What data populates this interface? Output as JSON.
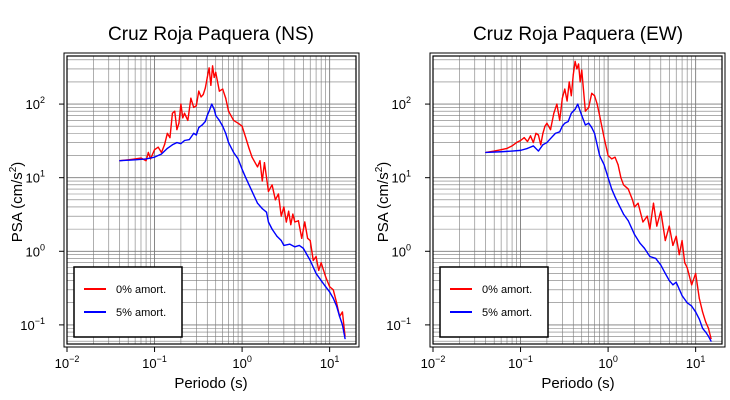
{
  "chart_data": [
    {
      "type": "line",
      "title": "Cruz Roja Paquera (NS)",
      "xlabel": "Periodo (s)",
      "ylabel_main": "PSA (cm/s",
      "ylabel_sup": "2",
      "ylabel_close": ")",
      "xscale": "log",
      "yscale": "log",
      "xlim": [
        0.01,
        20
      ],
      "ylim": [
        0.055,
        450
      ],
      "grid": true,
      "legend_position": "bottom-left",
      "x_ticks": [
        {
          "base": "10",
          "exp": "−2",
          "value": 0.01
        },
        {
          "base": "10",
          "exp": "−1",
          "value": 0.1
        },
        {
          "base": "10",
          "exp": "0",
          "value": 1
        },
        {
          "base": "10",
          "exp": "1",
          "value": 10
        }
      ],
      "y_ticks": [
        {
          "label": "10",
          "exp": "−1",
          "value": 0.1
        },
        {
          "label": "10",
          "exp": "0",
          "value": 1
        },
        {
          "label": "10",
          "exp": "1",
          "value": 10
        },
        {
          "label": "10",
          "exp": "2",
          "value": 100
        }
      ],
      "series": [
        {
          "name": "0% amort.",
          "color": "#ff0000",
          "x": [
            0.04,
            0.05,
            0.06,
            0.07,
            0.08,
            0.085,
            0.09,
            0.1,
            0.11,
            0.12,
            0.13,
            0.14,
            0.15,
            0.16,
            0.17,
            0.18,
            0.19,
            0.2,
            0.21,
            0.22,
            0.24,
            0.26,
            0.28,
            0.3,
            0.32,
            0.34,
            0.36,
            0.38,
            0.4,
            0.42,
            0.44,
            0.46,
            0.48,
            0.5,
            0.55,
            0.6,
            0.65,
            0.7,
            0.8,
            0.9,
            1.0,
            1.1,
            1.2,
            1.3,
            1.5,
            1.6,
            1.7,
            1.8,
            2.0,
            2.2,
            2.4,
            2.6,
            2.8,
            3.0,
            3.2,
            3.4,
            3.6,
            3.8,
            4.0,
            4.4,
            4.8,
            5.2,
            5.6,
            6.0,
            6.5,
            7.0,
            7.5,
            8.0,
            9.0,
            10.0,
            11.0,
            12.0,
            13.0,
            14.0,
            15.0
          ],
          "y": [
            17,
            17.5,
            18,
            18.5,
            17,
            22,
            18,
            24,
            26,
            22,
            28,
            40,
            35,
            75,
            80,
            45,
            55,
            100,
            65,
            75,
            60,
            120,
            90,
            95,
            150,
            125,
            135,
            165,
            230,
            310,
            180,
            330,
            230,
            270,
            150,
            160,
            120,
            80,
            60,
            55,
            50,
            35,
            25,
            19,
            14,
            17,
            9,
            16,
            6.5,
            8,
            5,
            6,
            3,
            4,
            2.5,
            3.5,
            2.3,
            3.2,
            2.5,
            2.6,
            1.5,
            2.5,
            1.5,
            1.4,
            0.75,
            0.85,
            0.55,
            0.7,
            0.45,
            0.33,
            0.3,
            0.2,
            0.13,
            0.15,
            0.07
          ]
        },
        {
          "name": "5% amort.",
          "color": "#0000ff",
          "x": [
            0.04,
            0.06,
            0.08,
            0.1,
            0.12,
            0.14,
            0.16,
            0.18,
            0.2,
            0.22,
            0.25,
            0.28,
            0.3,
            0.32,
            0.35,
            0.38,
            0.4,
            0.42,
            0.45,
            0.48,
            0.5,
            0.55,
            0.6,
            0.65,
            0.7,
            0.8,
            0.9,
            1.0,
            1.1,
            1.2,
            1.3,
            1.5,
            1.7,
            1.9,
            2.0,
            2.2,
            2.5,
            2.8,
            3.0,
            3.5,
            4.0,
            4.5,
            5.0,
            5.5,
            6.0,
            7.0,
            8.0,
            9.0,
            10.0,
            11.0,
            12.0,
            13.0,
            14.0,
            15.0
          ],
          "y": [
            17,
            17.5,
            18,
            19,
            21,
            25,
            28,
            30,
            29,
            32,
            33,
            40,
            38,
            48,
            52,
            58,
            70,
            80,
            100,
            85,
            70,
            60,
            50,
            40,
            30,
            22,
            18,
            13,
            10,
            8,
            6.5,
            4.5,
            3.8,
            3.4,
            2.5,
            2,
            1.6,
            1.4,
            1.2,
            1.25,
            1.15,
            1.2,
            1.1,
            0.9,
            0.75,
            0.5,
            0.4,
            0.33,
            0.28,
            0.23,
            0.18,
            0.13,
            0.1,
            0.065
          ]
        }
      ]
    },
    {
      "type": "line",
      "title": "Cruz Roja Paquera (EW)",
      "xlabel": "Periodo (s)",
      "ylabel_main": "PSA (cm/s",
      "ylabel_sup": "2",
      "ylabel_close": ")",
      "xscale": "log",
      "yscale": "log",
      "xlim": [
        0.01,
        20
      ],
      "ylim": [
        0.055,
        450
      ],
      "grid": true,
      "legend_position": "bottom-left",
      "x_ticks": [
        {
          "base": "10",
          "exp": "−2",
          "value": 0.01
        },
        {
          "base": "10",
          "exp": "−1",
          "value": 0.1
        },
        {
          "base": "10",
          "exp": "0",
          "value": 1
        },
        {
          "base": "10",
          "exp": "1",
          "value": 10
        }
      ],
      "y_ticks": [
        {
          "label": "10",
          "exp": "−1",
          "value": 0.1
        },
        {
          "label": "10",
          "exp": "0",
          "value": 1
        },
        {
          "label": "10",
          "exp": "1",
          "value": 10
        },
        {
          "label": "10",
          "exp": "2",
          "value": 100
        }
      ],
      "series": [
        {
          "name": "0% amort.",
          "color": "#ff0000",
          "x": [
            0.04,
            0.05,
            0.06,
            0.07,
            0.08,
            0.09,
            0.1,
            0.11,
            0.12,
            0.13,
            0.14,
            0.15,
            0.16,
            0.17,
            0.18,
            0.19,
            0.2,
            0.22,
            0.24,
            0.26,
            0.28,
            0.3,
            0.32,
            0.34,
            0.36,
            0.38,
            0.4,
            0.42,
            0.44,
            0.46,
            0.48,
            0.5,
            0.55,
            0.6,
            0.65,
            0.7,
            0.75,
            0.8,
            0.9,
            1.0,
            1.1,
            1.2,
            1.3,
            1.4,
            1.5,
            1.7,
            1.9,
            2.0,
            2.2,
            2.5,
            2.8,
            3.0,
            3.3,
            3.6,
            4.0,
            4.5,
            5.0,
            5.5,
            6.0,
            6.5,
            7.0,
            7.5,
            8.0,
            9.0,
            10.0,
            11.0,
            12.0,
            13.0,
            14.0,
            15.0
          ],
          "y": [
            22,
            23,
            24,
            25,
            27,
            30,
            32,
            35,
            31,
            37,
            30,
            40,
            38,
            28,
            40,
            50,
            55,
            45,
            75,
            100,
            60,
            120,
            160,
            110,
            200,
            130,
            250,
            380,
            300,
            350,
            200,
            290,
            80,
            90,
            140,
            130,
            100,
            70,
            35,
            20,
            18,
            19,
            15,
            10,
            8,
            7,
            5,
            4,
            4.5,
            2.5,
            3,
            2,
            4.5,
            2.2,
            3.5,
            1.4,
            2.2,
            1.2,
            1.6,
            0.9,
            1.4,
            0.7,
            0.6,
            0.35,
            0.5,
            0.23,
            0.15,
            0.11,
            0.09,
            0.065
          ]
        },
        {
          "name": "5% amort.",
          "color": "#0000ff",
          "x": [
            0.04,
            0.06,
            0.08,
            0.1,
            0.12,
            0.14,
            0.16,
            0.18,
            0.2,
            0.22,
            0.25,
            0.28,
            0.3,
            0.32,
            0.35,
            0.38,
            0.4,
            0.42,
            0.45,
            0.48,
            0.5,
            0.55,
            0.6,
            0.65,
            0.7,
            0.8,
            0.9,
            1.0,
            1.1,
            1.2,
            1.3,
            1.5,
            1.7,
            2.0,
            2.3,
            2.6,
            3.0,
            3.5,
            4.0,
            4.5,
            5.0,
            5.5,
            6.0,
            7.0,
            8.0,
            9.0,
            10.0,
            11.0,
            12.0,
            13.0,
            14.0,
            15.0
          ],
          "y": [
            22,
            22.5,
            23,
            23.5,
            25,
            27,
            23,
            28,
            30,
            34,
            40,
            42,
            50,
            55,
            58,
            75,
            80,
            85,
            100,
            80,
            70,
            52,
            55,
            48,
            40,
            20,
            15,
            10,
            7,
            5.5,
            4.5,
            3.2,
            2.6,
            1.7,
            1.3,
            1.1,
            0.85,
            0.8,
            0.65,
            0.5,
            0.4,
            0.35,
            0.38,
            0.25,
            0.2,
            0.18,
            0.15,
            0.12,
            0.09,
            0.08,
            0.07,
            0.06
          ]
        }
      ]
    }
  ]
}
